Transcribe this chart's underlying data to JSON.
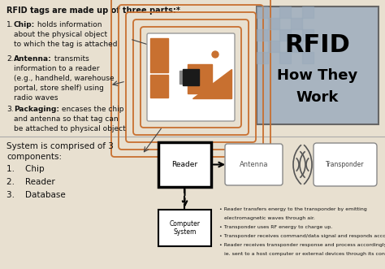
{
  "bg_color": "#e8e0d0",
  "title_top": "RFID tags are made up of three parts:*",
  "rfid_title_line1": "RFID",
  "rfid_title_line2": "How They",
  "rfid_title_line3": "Work",
  "rfid_bg": "#a8b4c0",
  "antenna_color": "#c87030",
  "system_text_line1": "System is comprised of 3",
  "system_text_line2": "components:",
  "system_list": [
    "1.    Chip",
    "2.    Reader",
    "3.    Database"
  ],
  "bullets": [
    "• Reader transfers energy to the transponder by emitting",
    "   electromagnetic waves through air.",
    "• Transponder uses RF energy to charge up.",
    "• Transponder receives command/data signal and responds accordingly",
    "• Reader receives transponder response and process accordingly",
    "   ie. sent to a host computer or external devices through its control lines."
  ]
}
